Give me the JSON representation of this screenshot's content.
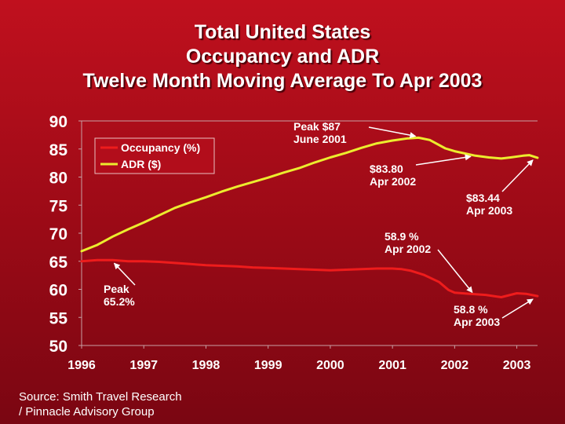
{
  "title_lines": [
    "Total United States",
    "Occupancy and ADR",
    "Twelve Month Moving Average To Apr 2003"
  ],
  "source_lines": [
    "Source: Smith Travel Research",
    "/ Pinnacle Advisory Group"
  ],
  "colors": {
    "occupancy": "#ee1c1c",
    "adr": "#ecec2e",
    "text": "#ffffff",
    "annotation_line": "#ffffff"
  },
  "chart_data": {
    "type": "line",
    "title": "Total United States Occupancy and ADR Twelve Month Moving Average To Apr 2003",
    "xlabel": "",
    "ylabel": "",
    "ylim": [
      50,
      90
    ],
    "xlim": [
      1996,
      2003.3333
    ],
    "yticks": [
      50,
      55,
      60,
      65,
      70,
      75,
      80,
      85,
      90
    ],
    "xtick_labels": [
      "1996",
      "1997",
      "1998",
      "1999",
      "2000",
      "2001",
      "2002",
      "2003"
    ],
    "xtick_values": [
      1996,
      1997,
      1998,
      1999,
      2000,
      2001,
      2002,
      2003
    ],
    "grid": false,
    "legend": "top-left",
    "series": [
      {
        "name": "Occupancy (%)",
        "color_key": "occupancy",
        "x": [
          1996.0,
          1996.25,
          1996.5,
          1996.75,
          1997.0,
          1997.25,
          1997.5,
          1997.75,
          1998.0,
          1998.25,
          1998.5,
          1998.75,
          1999.0,
          1999.25,
          1999.5,
          1999.75,
          2000.0,
          2000.25,
          2000.5,
          2000.75,
          2001.0,
          2001.15,
          2001.3,
          2001.5,
          2001.75,
          2001.9,
          2002.0,
          2002.25,
          2002.5,
          2002.75,
          2003.0,
          2003.15,
          2003.3333
        ],
        "y": [
          65.0,
          65.2,
          65.2,
          65.0,
          65.0,
          64.9,
          64.7,
          64.5,
          64.3,
          64.2,
          64.1,
          63.9,
          63.8,
          63.7,
          63.6,
          63.5,
          63.4,
          63.5,
          63.6,
          63.7,
          63.7,
          63.6,
          63.3,
          62.6,
          61.3,
          59.9,
          59.4,
          59.2,
          59.0,
          58.6,
          59.3,
          59.2,
          58.8
        ]
      },
      {
        "name": "ADR ($)",
        "color_key": "adr",
        "x": [
          1996.0,
          1996.25,
          1996.5,
          1996.75,
          1997.0,
          1997.25,
          1997.5,
          1997.75,
          1998.0,
          1998.25,
          1998.5,
          1998.75,
          1999.0,
          1999.25,
          1999.5,
          1999.75,
          2000.0,
          2000.25,
          2000.5,
          2000.75,
          2001.0,
          2001.25,
          2001.42,
          2001.6,
          2001.85,
          2002.0,
          2002.3333,
          2002.55,
          2002.75,
          2002.9,
          2003.1,
          2003.2,
          2003.3333
        ],
        "y": [
          66.8,
          67.9,
          69.4,
          70.7,
          71.9,
          73.2,
          74.5,
          75.5,
          76.4,
          77.4,
          78.3,
          79.1,
          79.9,
          80.8,
          81.6,
          82.6,
          83.5,
          84.3,
          85.2,
          86.0,
          86.5,
          86.9,
          87.0,
          86.6,
          85.1,
          84.6,
          83.8,
          83.5,
          83.3,
          83.5,
          83.8,
          83.9,
          83.44
        ]
      }
    ],
    "annotations": [
      {
        "id": "adr-peak",
        "lines": [
          "Peak $87",
          "June 2001"
        ],
        "x": 2001.42,
        "y": 87.0,
        "series": "ADR ($)"
      },
      {
        "id": "adr-apr2002",
        "lines": [
          "$83.80",
          "Apr 2002"
        ],
        "x": 2002.3333,
        "y": 83.8,
        "series": "ADR ($)"
      },
      {
        "id": "adr-apr2003",
        "lines": [
          "$83.44",
          "Apr 2003"
        ],
        "x": 2003.3333,
        "y": 83.44,
        "series": "ADR ($)"
      },
      {
        "id": "occ-apr2002",
        "lines": [
          "58.9 %",
          "Apr 2002"
        ],
        "x": 2002.3333,
        "y": 58.9,
        "series": "Occupancy (%)"
      },
      {
        "id": "occ-peak",
        "lines": [
          "Peak",
          "65.2%"
        ],
        "x": 1996.5,
        "y": 65.2,
        "series": "Occupancy (%)"
      },
      {
        "id": "occ-apr2003",
        "lines": [
          "58.8 %",
          "Apr 2003"
        ],
        "x": 2003.3333,
        "y": 58.8,
        "series": "Occupancy (%)"
      }
    ]
  }
}
